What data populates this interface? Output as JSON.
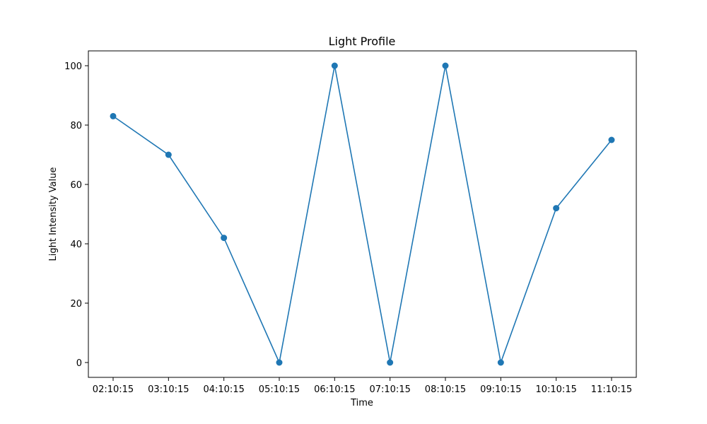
{
  "chart_data": {
    "type": "line",
    "title": "Light Profile",
    "xlabel": "Time",
    "ylabel": "Light Intensity Value",
    "categories": [
      "02:10:15",
      "03:10:15",
      "04:10:15",
      "05:10:15",
      "06:10:15",
      "07:10:15",
      "08:10:15",
      "09:10:15",
      "10:10:15",
      "11:10:15"
    ],
    "series": [
      {
        "values": [
          83,
          70,
          42,
          0,
          100,
          0,
          100,
          0,
          52,
          75
        ],
        "color": "#1f77b4",
        "marker": "circle"
      }
    ],
    "ylim": [
      -5,
      105
    ],
    "yticks": [
      0,
      20,
      40,
      60,
      80,
      100
    ],
    "grid": false,
    "legend": "none"
  }
}
